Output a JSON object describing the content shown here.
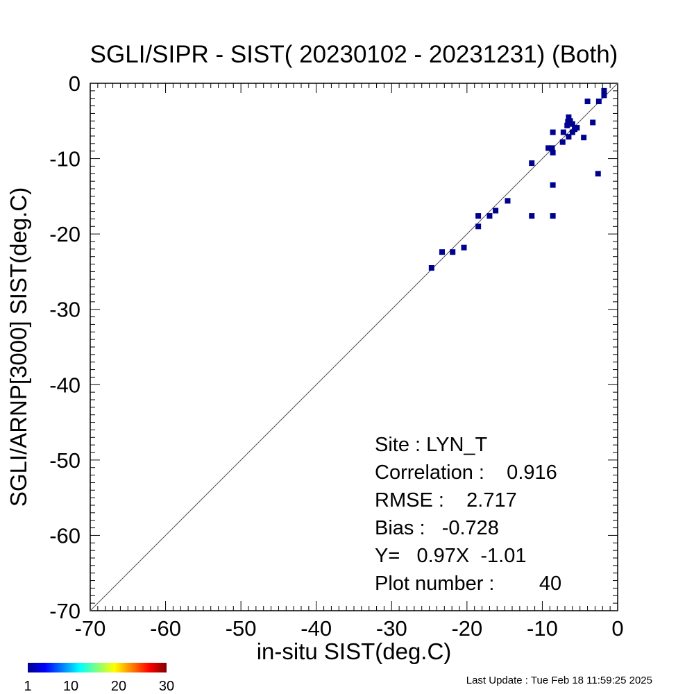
{
  "chart_data": {
    "type": "scatter",
    "title": "SGLI/SIPR - SIST( 20230102 - 20231231) (Both)",
    "xlabel": "in-situ SIST(deg.C)",
    "ylabel": "SGLI/ARNP[3000]    SIST(deg.C)",
    "xlim": [
      -70,
      0
    ],
    "ylim": [
      -70,
      0
    ],
    "xticks": [
      "-70",
      "-60",
      "-50",
      "-40",
      "-30",
      "-20",
      "-10",
      "0"
    ],
    "yticks": [
      "0",
      "-10",
      "-20",
      "-30",
      "-40",
      "-50",
      "-60",
      "-70"
    ],
    "grid": false,
    "reference_line": "y = x",
    "points": [
      [
        -1.8,
        -1.0
      ],
      [
        -1.8,
        -1.6
      ],
      [
        -2.5,
        -2.4
      ],
      [
        -4.0,
        -2.4
      ],
      [
        -3.3,
        -5.2
      ],
      [
        -4.5,
        -7.2
      ],
      [
        -2.6,
        -12.0
      ],
      [
        -5.4,
        -5.9
      ],
      [
        -5.7,
        -6.1
      ],
      [
        -6.0,
        -6.5
      ],
      [
        -6.0,
        -5.4
      ],
      [
        -6.3,
        -5.0
      ],
      [
        -6.5,
        -4.5
      ],
      [
        -6.6,
        -5.1
      ],
      [
        -6.7,
        -5.6
      ],
      [
        -6.5,
        -7.1
      ],
      [
        -7.2,
        -6.5
      ],
      [
        -7.3,
        -7.8
      ],
      [
        -8.6,
        -6.5
      ],
      [
        -8.7,
        -8.6
      ],
      [
        -8.6,
        -9.2
      ],
      [
        -9.2,
        -8.6
      ],
      [
        -8.6,
        -13.5
      ],
      [
        -8.6,
        -17.6
      ],
      [
        -11.4,
        -10.6
      ],
      [
        -11.4,
        -17.6
      ],
      [
        -14.6,
        -15.6
      ],
      [
        -16.2,
        -16.9
      ],
      [
        -17.0,
        -17.6
      ],
      [
        -18.5,
        -17.6
      ],
      [
        -18.5,
        -19.0
      ],
      [
        -20.4,
        -21.8
      ],
      [
        -21.9,
        -22.4
      ],
      [
        -23.3,
        -22.4
      ],
      [
        -24.7,
        -24.5
      ]
    ],
    "point_color": "#00008f",
    "colorbar": {
      "ticks": [
        "1",
        "10",
        "20",
        "30"
      ],
      "range": [
        1,
        30
      ],
      "colormap": "jet"
    },
    "stats": {
      "site": "Site : LYN_T",
      "correlation": "Correlation :    0.916",
      "rmse": "RMSE :    2.717",
      "bias": "Bias :   -0.728",
      "regression": "Y=   0.97X  -1.01",
      "plot_number": "Plot number :        40"
    }
  },
  "footer": {
    "last_update": "Last Update : Tue Feb 18 11:59:25 2025"
  }
}
